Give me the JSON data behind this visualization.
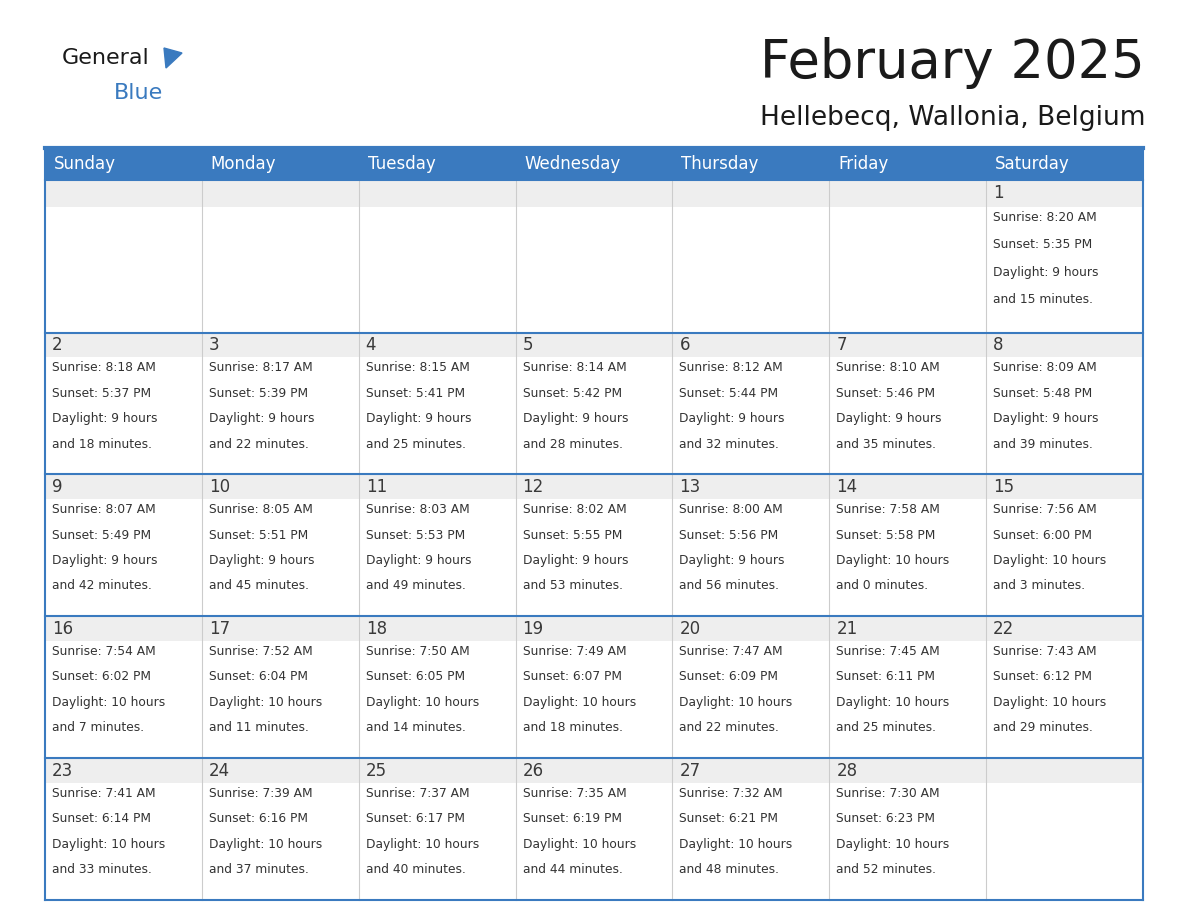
{
  "title": "February 2025",
  "subtitle": "Hellebecq, Wallonia, Belgium",
  "header_color": "#3a7abf",
  "header_text_color": "#ffffff",
  "cell_bg_white": "#ffffff",
  "cell_bg_gray": "#eeeeee",
  "day_number_color": "#3a3a3a",
  "text_color": "#333333",
  "line_color": "#3a7abf",
  "days_of_week": [
    "Sunday",
    "Monday",
    "Tuesday",
    "Wednesday",
    "Thursday",
    "Friday",
    "Saturday"
  ],
  "calendar_data": [
    [
      null,
      null,
      null,
      null,
      null,
      null,
      {
        "day": 1,
        "sunrise": "8:20 AM",
        "sunset": "5:35 PM",
        "daylight": "9 hours and 15 minutes."
      }
    ],
    [
      {
        "day": 2,
        "sunrise": "8:18 AM",
        "sunset": "5:37 PM",
        "daylight": "9 hours and 18 minutes."
      },
      {
        "day": 3,
        "sunrise": "8:17 AM",
        "sunset": "5:39 PM",
        "daylight": "9 hours and 22 minutes."
      },
      {
        "day": 4,
        "sunrise": "8:15 AM",
        "sunset": "5:41 PM",
        "daylight": "9 hours and 25 minutes."
      },
      {
        "day": 5,
        "sunrise": "8:14 AM",
        "sunset": "5:42 PM",
        "daylight": "9 hours and 28 minutes."
      },
      {
        "day": 6,
        "sunrise": "8:12 AM",
        "sunset": "5:44 PM",
        "daylight": "9 hours and 32 minutes."
      },
      {
        "day": 7,
        "sunrise": "8:10 AM",
        "sunset": "5:46 PM",
        "daylight": "9 hours and 35 minutes."
      },
      {
        "day": 8,
        "sunrise": "8:09 AM",
        "sunset": "5:48 PM",
        "daylight": "9 hours and 39 minutes."
      }
    ],
    [
      {
        "day": 9,
        "sunrise": "8:07 AM",
        "sunset": "5:49 PM",
        "daylight": "9 hours and 42 minutes."
      },
      {
        "day": 10,
        "sunrise": "8:05 AM",
        "sunset": "5:51 PM",
        "daylight": "9 hours and 45 minutes."
      },
      {
        "day": 11,
        "sunrise": "8:03 AM",
        "sunset": "5:53 PM",
        "daylight": "9 hours and 49 minutes."
      },
      {
        "day": 12,
        "sunrise": "8:02 AM",
        "sunset": "5:55 PM",
        "daylight": "9 hours and 53 minutes."
      },
      {
        "day": 13,
        "sunrise": "8:00 AM",
        "sunset": "5:56 PM",
        "daylight": "9 hours and 56 minutes."
      },
      {
        "day": 14,
        "sunrise": "7:58 AM",
        "sunset": "5:58 PM",
        "daylight": "10 hours and 0 minutes."
      },
      {
        "day": 15,
        "sunrise": "7:56 AM",
        "sunset": "6:00 PM",
        "daylight": "10 hours and 3 minutes."
      }
    ],
    [
      {
        "day": 16,
        "sunrise": "7:54 AM",
        "sunset": "6:02 PM",
        "daylight": "10 hours and 7 minutes."
      },
      {
        "day": 17,
        "sunrise": "7:52 AM",
        "sunset": "6:04 PM",
        "daylight": "10 hours and 11 minutes."
      },
      {
        "day": 18,
        "sunrise": "7:50 AM",
        "sunset": "6:05 PM",
        "daylight": "10 hours and 14 minutes."
      },
      {
        "day": 19,
        "sunrise": "7:49 AM",
        "sunset": "6:07 PM",
        "daylight": "10 hours and 18 minutes."
      },
      {
        "day": 20,
        "sunrise": "7:47 AM",
        "sunset": "6:09 PM",
        "daylight": "10 hours and 22 minutes."
      },
      {
        "day": 21,
        "sunrise": "7:45 AM",
        "sunset": "6:11 PM",
        "daylight": "10 hours and 25 minutes."
      },
      {
        "day": 22,
        "sunrise": "7:43 AM",
        "sunset": "6:12 PM",
        "daylight": "10 hours and 29 minutes."
      }
    ],
    [
      {
        "day": 23,
        "sunrise": "7:41 AM",
        "sunset": "6:14 PM",
        "daylight": "10 hours and 33 minutes."
      },
      {
        "day": 24,
        "sunrise": "7:39 AM",
        "sunset": "6:16 PM",
        "daylight": "10 hours and 37 minutes."
      },
      {
        "day": 25,
        "sunrise": "7:37 AM",
        "sunset": "6:17 PM",
        "daylight": "10 hours and 40 minutes."
      },
      {
        "day": 26,
        "sunrise": "7:35 AM",
        "sunset": "6:19 PM",
        "daylight": "10 hours and 44 minutes."
      },
      {
        "day": 27,
        "sunrise": "7:32 AM",
        "sunset": "6:21 PM",
        "daylight": "10 hours and 48 minutes."
      },
      {
        "day": 28,
        "sunrise": "7:30 AM",
        "sunset": "6:23 PM",
        "daylight": "10 hours and 52 minutes."
      },
      null
    ]
  ],
  "logo_general_color": "#1a1a1a",
  "logo_blue_color": "#3a7abf",
  "title_color": "#1a1a1a",
  "subtitle_color": "#1a1a1a"
}
